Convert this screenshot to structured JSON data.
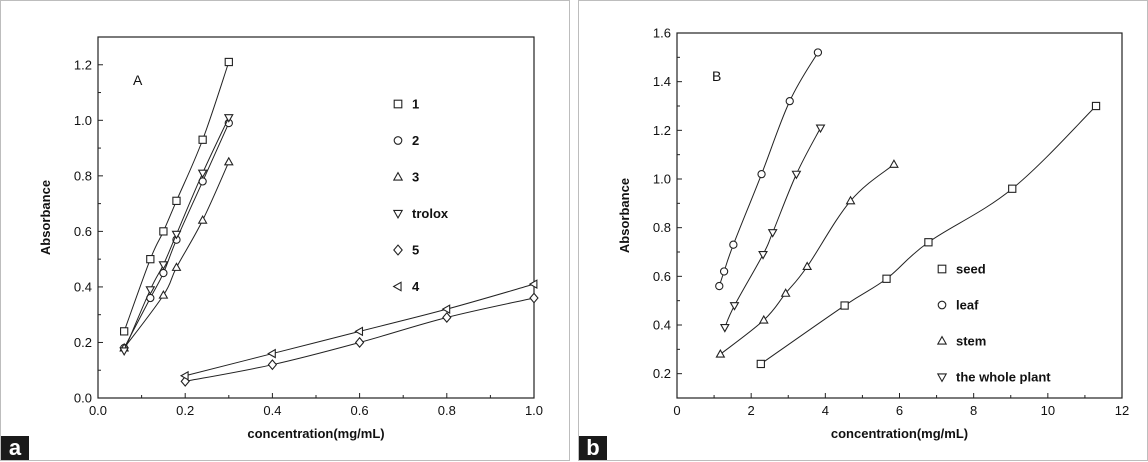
{
  "figure_labels": {
    "a": "a",
    "b": "b"
  },
  "chart_data": [
    {
      "type": "line",
      "panel_letter": "A",
      "xlabel": "concentration(mg/mL)",
      "ylabel": "Absorbance",
      "xlim": [
        0.0,
        1.0
      ],
      "ylim": [
        0.0,
        1.3
      ],
      "xticks": [
        0.0,
        0.2,
        0.4,
        0.6,
        0.8,
        1.0
      ],
      "xtick_labels": [
        "0.0",
        "0.2",
        "0.4",
        "0.6",
        "0.8",
        "1.0"
      ],
      "yticks": [
        0.0,
        0.2,
        0.4,
        0.6,
        0.8,
        1.0,
        1.2
      ],
      "ytick_labels": [
        "0.0",
        "0.2",
        "0.4",
        "0.6",
        "0.8",
        "1.0",
        "1.2"
      ],
      "legend_position": "top-right",
      "series": [
        {
          "name": "1",
          "marker": "square",
          "x": [
            0.06,
            0.12,
            0.15,
            0.18,
            0.24,
            0.3
          ],
          "y": [
            0.24,
            0.5,
            0.6,
            0.71,
            0.93,
            1.21
          ]
        },
        {
          "name": "2",
          "marker": "circle",
          "x": [
            0.06,
            0.12,
            0.15,
            0.18,
            0.24,
            0.3
          ],
          "y": [
            0.18,
            0.36,
            0.45,
            0.57,
            0.78,
            0.99
          ]
        },
        {
          "name": "3",
          "marker": "triangle-up",
          "x": [
            0.06,
            0.15,
            0.18,
            0.24,
            0.3
          ],
          "y": [
            0.18,
            0.37,
            0.47,
            0.64,
            0.85
          ]
        },
        {
          "name": "trolox",
          "marker": "triangle-down",
          "x": [
            0.06,
            0.12,
            0.15,
            0.18,
            0.24,
            0.3
          ],
          "y": [
            0.17,
            0.39,
            0.48,
            0.59,
            0.81,
            1.01
          ]
        },
        {
          "name": "5",
          "marker": "diamond",
          "x": [
            0.2,
            0.4,
            0.6,
            0.8,
            1.0
          ],
          "y": [
            0.06,
            0.12,
            0.2,
            0.29,
            0.36
          ]
        },
        {
          "name": "4",
          "marker": "triangle-left",
          "x": [
            0.2,
            0.4,
            0.6,
            0.8,
            1.0
          ],
          "y": [
            0.08,
            0.16,
            0.24,
            0.32,
            0.41
          ]
        }
      ]
    },
    {
      "type": "line",
      "panel_letter": "B",
      "xlabel": "concentration(mg/mL)",
      "ylabel": "Absorbance",
      "xlim": [
        0,
        12
      ],
      "ylim": [
        0.1,
        1.6
      ],
      "xticks": [
        0,
        2,
        4,
        6,
        8,
        10,
        12
      ],
      "xtick_labels": [
        "0",
        "2",
        "4",
        "6",
        "8",
        "10",
        "12"
      ],
      "yticks": [
        0.2,
        0.4,
        0.6,
        0.8,
        1.0,
        1.2,
        1.4,
        1.6
      ],
      "ytick_labels": [
        "0.2",
        "0.4",
        "0.6",
        "0.8",
        "1.0",
        "1.2",
        "1.4",
        "1.6"
      ],
      "legend_position": "bottom-right",
      "series": [
        {
          "name": "seed",
          "marker": "square",
          "x": [
            2.26,
            4.52,
            5.65,
            6.78,
            9.04,
            11.3
          ],
          "y": [
            0.24,
            0.48,
            0.59,
            0.74,
            0.96,
            1.3
          ]
        },
        {
          "name": "leaf",
          "marker": "circle",
          "x": [
            1.14,
            1.27,
            1.52,
            2.28,
            3.04,
            3.8
          ],
          "y": [
            0.56,
            0.62,
            0.73,
            1.02,
            1.32,
            1.52
          ]
        },
        {
          "name": "stem",
          "marker": "triangle-up",
          "x": [
            1.17,
            2.34,
            2.93,
            3.51,
            4.68,
            5.85
          ],
          "y": [
            0.28,
            0.42,
            0.53,
            0.64,
            0.91,
            1.06
          ]
        },
        {
          "name": "the whole plant",
          "marker": "triangle-down",
          "x": [
            1.29,
            1.55,
            2.32,
            2.58,
            3.22,
            3.87
          ],
          "y": [
            0.39,
            0.48,
            0.69,
            0.78,
            1.02,
            1.21
          ]
        }
      ]
    }
  ]
}
